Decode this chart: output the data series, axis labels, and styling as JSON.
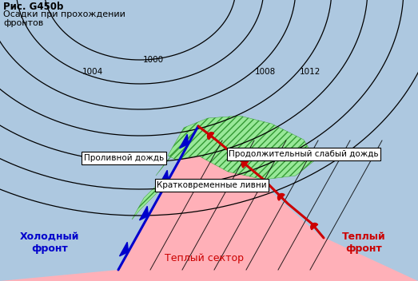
{
  "title_line1": "Рис. G450b",
  "title_line2": "Осадки при прохождении",
  "title_line3": "фронтов",
  "bg_color": "#adc8e0",
  "pink_color": "#ffb0b8",
  "green_color": "#98e898",
  "isobar_color": "#000000",
  "cold_front_color": "#0000cc",
  "warm_front_color": "#cc0000",
  "label_heavy_rain": "Проливной дождь",
  "label_showers": "Кратковременные ливни",
  "label_light_rain": "Продолжительный слабый дождь",
  "label_cold_front": "Холодный\nфронт",
  "label_warm_front": "Теплый\nфронт",
  "label_warm_sector": "Теплый сектор",
  "label_title1": "Рис. G450b",
  "label_title2": "Осадки при прохождении",
  "label_title3": "фронтов"
}
